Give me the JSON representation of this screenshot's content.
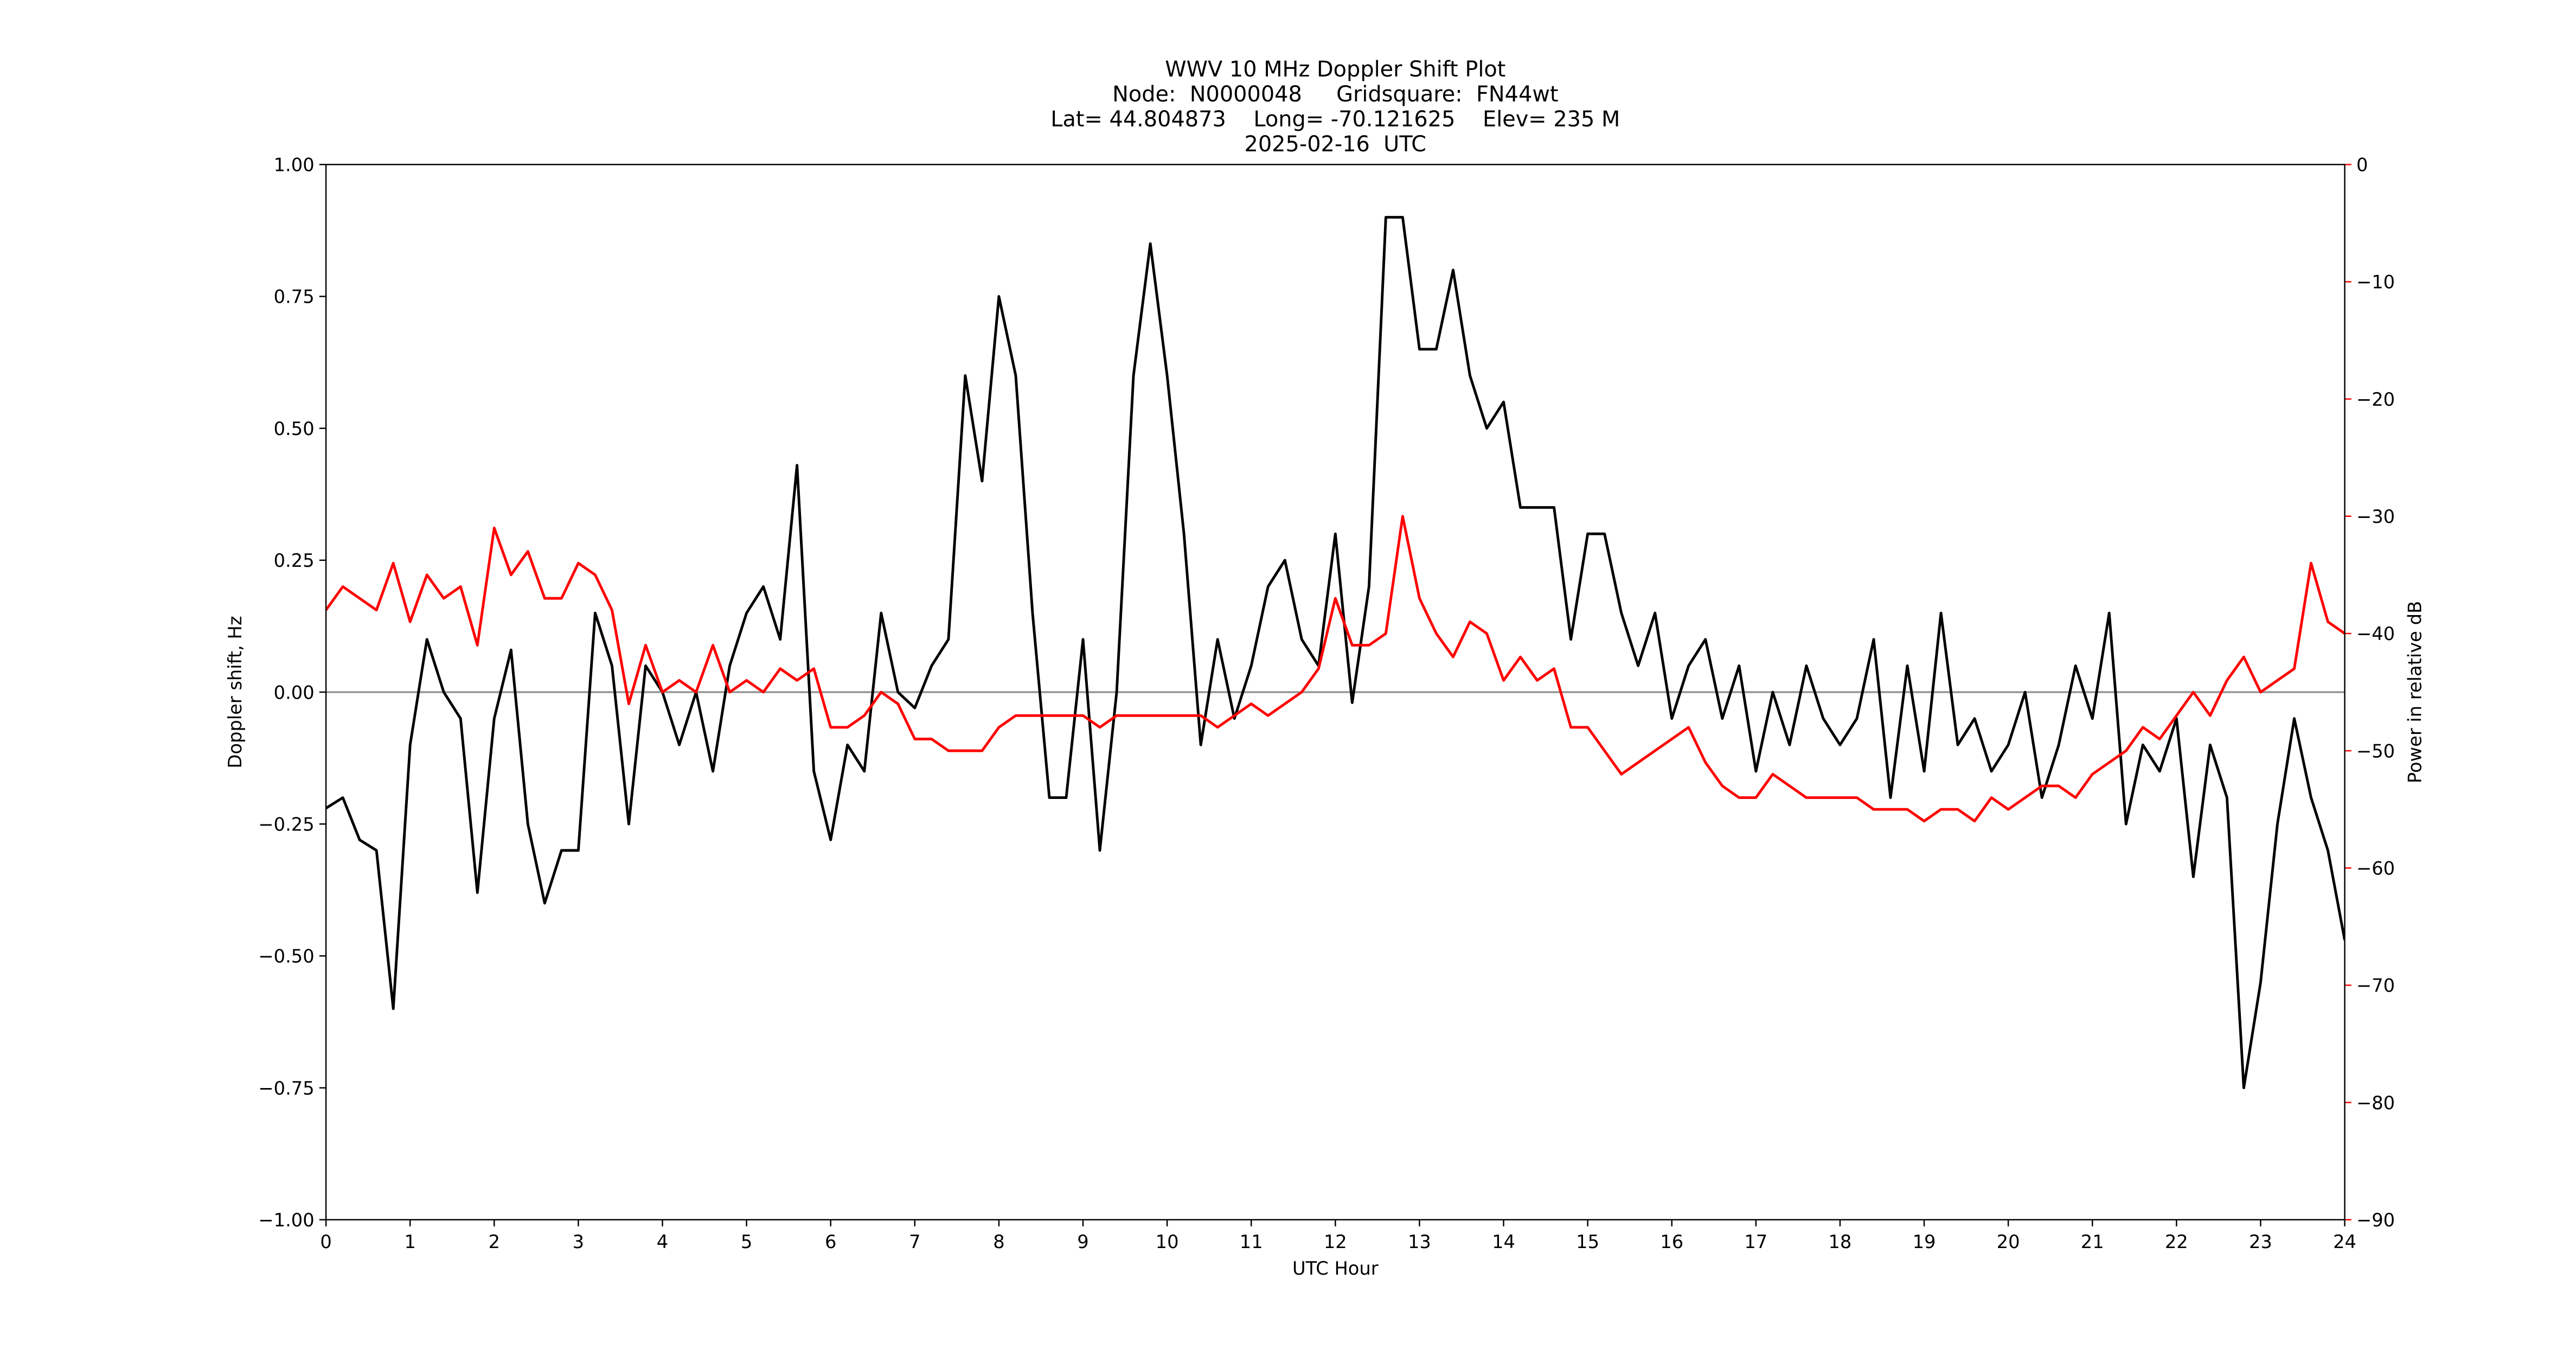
{
  "chart_data": {
    "type": "line",
    "title": [
      "WWV 10 MHz Doppler Shift Plot",
      "Node:  N0000048     Gridsquare:  FN44wt",
      "Lat= 44.804873    Long= -70.121625    Elev= 235 M",
      "2025-02-16  UTC"
    ],
    "x_label": "UTC Hour",
    "y_label": "Doppler shift, Hz",
    "y2_label": "Power in relative dB",
    "y2_color": "#ff0000",
    "hline": 0,
    "hline_color": "#999999",
    "xlim": [
      0,
      24
    ],
    "xticks": [
      0,
      1,
      2,
      3,
      4,
      5,
      6,
      7,
      8,
      9,
      10,
      11,
      12,
      13,
      14,
      15,
      16,
      17,
      18,
      19,
      20,
      21,
      22,
      23,
      24
    ],
    "ylim": [
      -1,
      1
    ],
    "yticks": [
      {
        "value": -1,
        "label": "−1.00"
      },
      {
        "value": -0.75,
        "label": "−0.75"
      },
      {
        "value": -0.5,
        "label": "−0.50"
      },
      {
        "value": -0.25,
        "label": "−0.25"
      },
      {
        "value": 0,
        "label": "0.00"
      },
      {
        "value": 0.25,
        "label": "0.25"
      },
      {
        "value": 0.5,
        "label": "0.50"
      },
      {
        "value": 0.75,
        "label": "0.75"
      },
      {
        "value": 1,
        "label": "1.00"
      }
    ],
    "y2lim": [
      -90,
      0
    ],
    "y2ticks": [
      {
        "value": -90,
        "label": "−90"
      },
      {
        "value": -80,
        "label": "−80"
      },
      {
        "value": -70,
        "label": "−70"
      },
      {
        "value": -60,
        "label": "−60"
      },
      {
        "value": -50,
        "label": "−50"
      },
      {
        "value": -40,
        "label": "−40"
      },
      {
        "value": -30,
        "label": "−30"
      },
      {
        "value": -20,
        "label": "−20"
      },
      {
        "value": -10,
        "label": "−10"
      },
      0
    ],
    "x": [
      0,
      0.2,
      0.4,
      0.6,
      0.8,
      1,
      1.2,
      1.4,
      1.6,
      1.8,
      2,
      2.2,
      2.4,
      2.6,
      2.8,
      3,
      3.2,
      3.4,
      3.6,
      3.8,
      4,
      4.2,
      4.4,
      4.6,
      4.8,
      5,
      5.2,
      5.4,
      5.6,
      5.8,
      6,
      6.2,
      6.4,
      6.6,
      6.8,
      7,
      7.2,
      7.4,
      7.6,
      7.8,
      8,
      8.2,
      8.4,
      8.6,
      8.8,
      9,
      9.2,
      9.4,
      9.6,
      9.8,
      10,
      10.2,
      10.4,
      10.6,
      10.8,
      11,
      11.2,
      11.4,
      11.6,
      11.8,
      12,
      12.2,
      12.4,
      12.6,
      12.8,
      13,
      13.2,
      13.4,
      13.6,
      13.8,
      14,
      14.2,
      14.4,
      14.6,
      14.8,
      15,
      15.2,
      15.4,
      15.6,
      15.8,
      16,
      16.2,
      16.4,
      16.6,
      16.8,
      17,
      17.2,
      17.4,
      17.6,
      17.8,
      18,
      18.2,
      18.4,
      18.6,
      18.8,
      19,
      19.2,
      19.4,
      19.6,
      19.8,
      20,
      20.2,
      20.4,
      20.6,
      20.8,
      21,
      21.2,
      21.4,
      21.6,
      21.8,
      22,
      22.2,
      22.4,
      22.6,
      22.8,
      23,
      23.2,
      23.4,
      23.6,
      23.8,
      24
    ],
    "series": [
      {
        "color": "#000000",
        "values": [
          -0.22,
          -0.2,
          -0.28,
          -0.3,
          -0.6,
          -0.1,
          0.1,
          0,
          -0.05,
          -0.38,
          -0.05,
          0.08,
          -0.25,
          -0.4,
          -0.3,
          -0.3,
          0.15,
          0.05,
          -0.25,
          0.05,
          0,
          -0.1,
          0,
          -0.15,
          0.05,
          0.15,
          0.2,
          0.1,
          0.43,
          -0.15,
          -0.28,
          -0.1,
          -0.15,
          0.15,
          0,
          -0.03,
          0.05,
          0.1,
          0.6,
          0.4,
          0.75,
          0.6,
          0.15,
          -0.2,
          -0.2,
          0.1,
          -0.3,
          0,
          0.6,
          0.85,
          0.6,
          0.3,
          -0.1,
          0.1,
          -0.05,
          0.05,
          0.2,
          0.25,
          0.1,
          0.05,
          0.3,
          -0.02,
          0.2,
          0.9,
          0.9,
          0.65,
          0.65,
          0.8,
          0.6,
          0.5,
          0.55,
          0.35,
          0.35,
          0.35,
          0.1,
          0.3,
          0.3,
          0.15,
          0.05,
          0.15,
          -0.05,
          0.05,
          0.1,
          -0.05,
          0.05,
          -0.15,
          0,
          -0.1,
          0.05,
          -0.05,
          -0.1,
          -0.05,
          0.1,
          -0.2,
          0.05,
          -0.15,
          0.15,
          -0.1,
          -0.05,
          -0.15,
          -0.1,
          0,
          -0.2,
          -0.1,
          0.05,
          -0.05,
          0.15,
          -0.25,
          -0.1,
          -0.15,
          -0.05,
          -0.35,
          -0.1,
          -0.2,
          -0.75,
          -0.55,
          -0.25,
          -0.05,
          -0.2,
          -0.3,
          -0.47
        ]
      },
      {
        "color": "#ff0000",
        "axis": "y2",
        "values": [
          -38,
          -36,
          -37,
          -38,
          -34,
          -39,
          -35,
          -37,
          -36,
          -41,
          -31,
          -35,
          -33,
          -37,
          -37,
          -34,
          -35,
          -38,
          -46,
          -41,
          -45,
          -44,
          -45,
          -41,
          -45,
          -44,
          -45,
          -43,
          -44,
          -43,
          -48,
          -48,
          -47,
          -45,
          -46,
          -49,
          -49,
          -50,
          -50,
          -50,
          -48,
          -47,
          -47,
          -47,
          -47,
          -47,
          -48,
          -47,
          -47,
          -47,
          -47,
          -47,
          -47,
          -48,
          -47,
          -46,
          -47,
          -46,
          -45,
          -43,
          -37,
          -41,
          -41,
          -40,
          -30,
          -37,
          -40,
          -42,
          -39,
          -40,
          -44,
          -42,
          -44,
          -43,
          -48,
          -48,
          -50,
          -52,
          -51,
          -50,
          -49,
          -48,
          -51,
          -53,
          -54,
          -54,
          -52,
          -53,
          -54,
          -54,
          -54,
          -54,
          -55,
          -55,
          -55,
          -56,
          -55,
          -55,
          -56,
          -54,
          -55,
          -54,
          -53,
          -53,
          -54,
          -52,
          -51,
          -50,
          -48,
          -49,
          -47,
          -45,
          -47,
          -44,
          -42,
          -45,
          -44,
          -43,
          -34,
          -39,
          -40
        ]
      }
    ]
  }
}
